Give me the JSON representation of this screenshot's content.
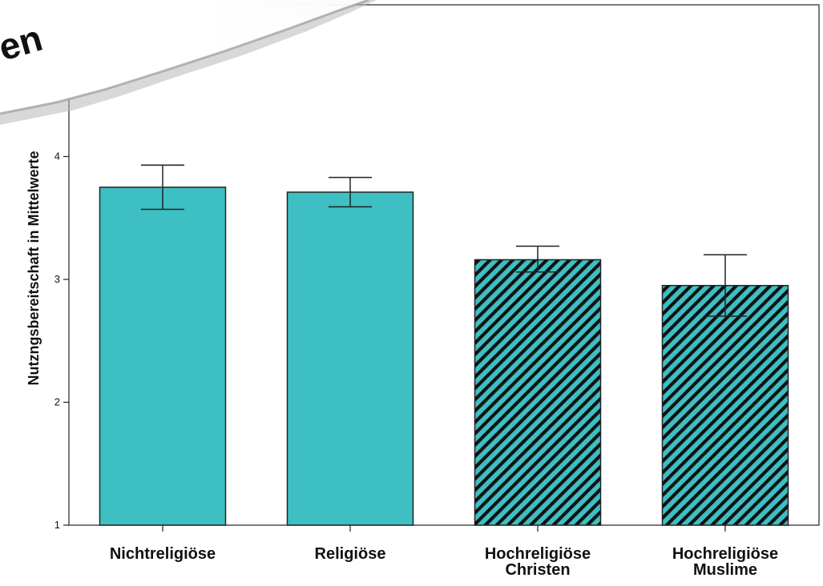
{
  "banner": {
    "text": "en"
  },
  "chart_data": {
    "type": "bar",
    "title": "",
    "xlabel": "",
    "ylabel": "Nutzngsbereitschaft in Mittelwerte",
    "ylim": [
      1,
      4.8
    ],
    "yticks": [
      1,
      2,
      3,
      4
    ],
    "categories": [
      "Nichtreligiöse",
      "Religiöse",
      "Hochreligiöse Christen",
      "Hochreligiöse Muslime"
    ],
    "category_label_lines": [
      [
        "Nichtreligiöse"
      ],
      [
        "Religiöse"
      ],
      [
        "Hochreligiöse",
        "Christen"
      ],
      [
        "Hochreligiöse",
        "Muslime"
      ]
    ],
    "values": [
      3.75,
      3.71,
      3.16,
      2.95
    ],
    "error_low": [
      3.57,
      3.59,
      3.06,
      2.7
    ],
    "error_high": [
      3.93,
      3.83,
      3.27,
      3.2
    ],
    "bar_patterns": [
      "solid",
      "solid",
      "hatched",
      "hatched"
    ],
    "bar_color": "#3dbfc3",
    "grid": false,
    "legend": "none"
  }
}
